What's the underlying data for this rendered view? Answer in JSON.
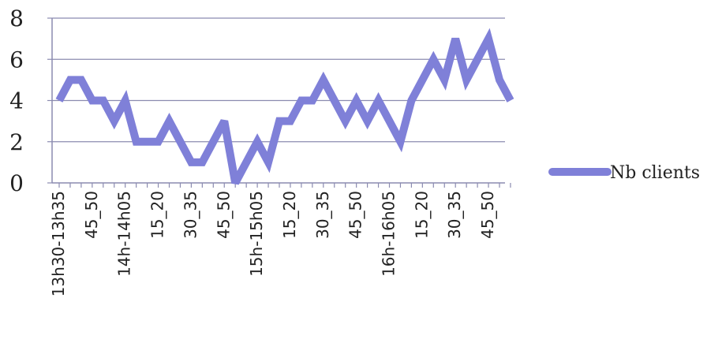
{
  "chart_data": {
    "type": "line",
    "title": "",
    "xlabel": "",
    "ylabel": "",
    "ylim": [
      0,
      8
    ],
    "yticks": [
      "0",
      "2",
      "4",
      "6",
      "8"
    ],
    "grid": true,
    "legend_position": "right",
    "x_tick_labels": [
      "13h30-13h35",
      "45_50",
      "14h-14h05",
      "15_20",
      "30_35",
      "45_50",
      "15h-15h05",
      "15_20",
      "30_35",
      "45_50",
      "16h-16h05",
      "15_20",
      "30_35",
      "45_50"
    ],
    "series": [
      {
        "name": "Nb clients",
        "color": "#7f80d8",
        "values": [
          4,
          5,
          5,
          4,
          4,
          3,
          4,
          2,
          2,
          2,
          3,
          2,
          1,
          1,
          2,
          3,
          0,
          1,
          2,
          1,
          3,
          3,
          4,
          4,
          5,
          4,
          3,
          4,
          3,
          4,
          3,
          2,
          4,
          5,
          6,
          5,
          7,
          5,
          6,
          7,
          5,
          4
        ]
      }
    ]
  }
}
